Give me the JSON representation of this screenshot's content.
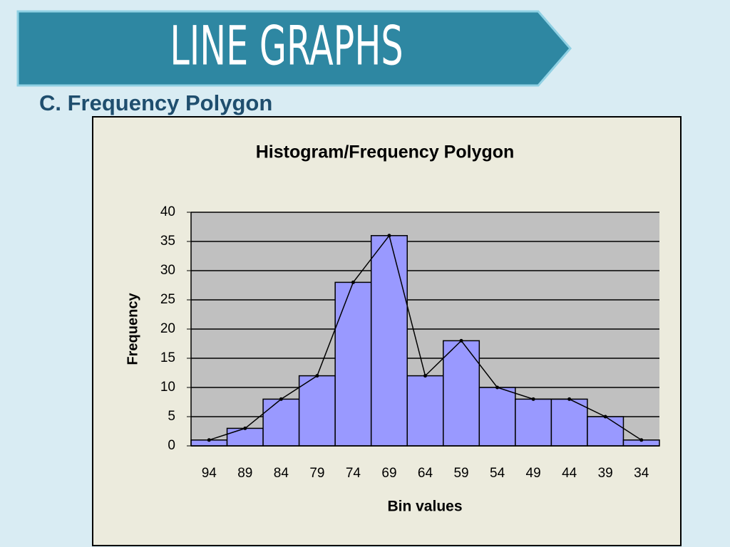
{
  "slide": {
    "title": "LINE GRAPHS",
    "subtitle": "C. Frequency Polygon"
  },
  "chart_data": {
    "type": "bar",
    "title": "Histogram/Frequency Polygon",
    "x_label": "Bin values",
    "y_label": "Frequency",
    "categories": [
      "94",
      "89",
      "84",
      "79",
      "74",
      "69",
      "64",
      "59",
      "54",
      "49",
      "44",
      "39",
      "34"
    ],
    "values": [
      1,
      3,
      8,
      12,
      28,
      36,
      12,
      18,
      10,
      8,
      8,
      5,
      1
    ],
    "color": "#9999ff",
    "polygon": true,
    "polygon_color": "#000000",
    "ylim": [
      0,
      40
    ],
    "yticks": [
      0,
      5,
      10,
      15,
      20,
      25,
      30,
      35,
      40
    ],
    "grid": true
  }
}
